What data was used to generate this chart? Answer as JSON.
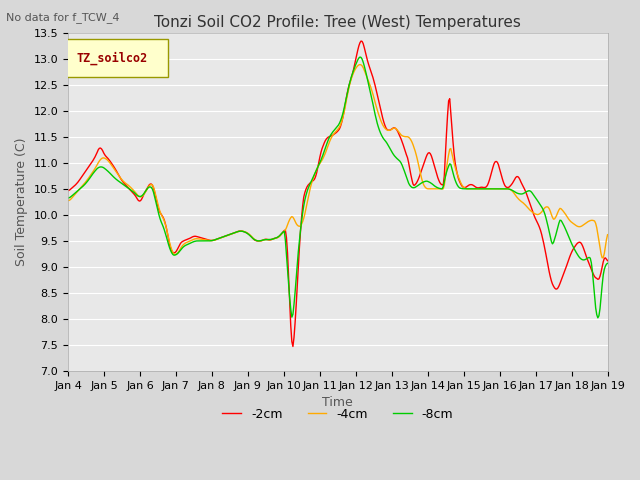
{
  "title": "Tonzi Soil CO2 Profile: Tree (West) Temperatures",
  "subtitle": "No data for f_TCW_4",
  "xlabel": "Time",
  "ylabel": "Soil Temperature (C)",
  "ylim": [
    7.0,
    13.5
  ],
  "yticks": [
    7.0,
    7.5,
    8.0,
    8.5,
    9.0,
    9.5,
    10.0,
    10.5,
    11.0,
    11.5,
    12.0,
    12.5,
    13.0,
    13.5
  ],
  "xtick_labels": [
    "Jan 4",
    "Jan 5",
    "Jan 6",
    "Jan 7",
    "Jan 8",
    "Jan 9",
    "Jan 10",
    "Jan 11",
    "Jan 12",
    "Jan 13",
    "Jan 14",
    "Jan 15",
    "Jan 16",
    "Jan 17",
    "Jan 18",
    "Jan 19"
  ],
  "legend_label": "TZ_soilco2",
  "legend_box_color": "#ffffcc",
  "legend_text_color": "#990000",
  "color_red": "#ff0000",
  "color_orange": "#ffaa00",
  "color_green": "#00cc00",
  "line_labels": [
    "-2cm",
    "-4cm",
    "-8cm"
  ],
  "bg_color": "#e0e0e0",
  "axes_bg_color": "#e8e8e8",
  "grid_color": "#ffffff",
  "title_fontsize": 11,
  "axis_label_fontsize": 9,
  "tick_fontsize": 8,
  "waypoints_red": [
    [
      0.0,
      10.45
    ],
    [
      0.25,
      10.6
    ],
    [
      0.5,
      10.85
    ],
    [
      0.75,
      11.1
    ],
    [
      0.9,
      11.35
    ],
    [
      1.0,
      11.15
    ],
    [
      1.1,
      11.1
    ],
    [
      1.3,
      10.9
    ],
    [
      1.5,
      10.65
    ],
    [
      1.7,
      10.5
    ],
    [
      1.9,
      10.35
    ],
    [
      2.0,
      10.2
    ],
    [
      2.1,
      10.4
    ],
    [
      2.2,
      10.5
    ],
    [
      2.3,
      10.65
    ],
    [
      2.4,
      10.5
    ],
    [
      2.5,
      10.1
    ],
    [
      2.7,
      9.9
    ],
    [
      2.85,
      9.3
    ],
    [
      3.0,
      9.25
    ],
    [
      3.1,
      9.45
    ],
    [
      3.2,
      9.5
    ],
    [
      3.4,
      9.55
    ],
    [
      3.5,
      9.6
    ],
    [
      4.0,
      9.5
    ],
    [
      4.2,
      9.55
    ],
    [
      4.4,
      9.6
    ],
    [
      4.6,
      9.65
    ],
    [
      4.8,
      9.7
    ],
    [
      5.0,
      9.65
    ],
    [
      5.2,
      9.5
    ],
    [
      5.4,
      9.5
    ],
    [
      5.5,
      9.55
    ],
    [
      5.6,
      9.5
    ],
    [
      5.7,
      9.55
    ],
    [
      5.8,
      9.55
    ],
    [
      5.9,
      9.6
    ],
    [
      6.0,
      9.7
    ],
    [
      6.1,
      9.75
    ],
    [
      6.2,
      7.3
    ],
    [
      6.25,
      7.35
    ],
    [
      6.3,
      7.5
    ],
    [
      6.35,
      8.5
    ],
    [
      6.45,
      9.5
    ],
    [
      6.5,
      10.2
    ],
    [
      6.6,
      10.5
    ],
    [
      6.7,
      10.6
    ],
    [
      6.9,
      10.7
    ],
    [
      7.0,
      11.15
    ],
    [
      7.1,
      11.35
    ],
    [
      7.2,
      11.5
    ],
    [
      7.3,
      11.5
    ],
    [
      7.5,
      11.6
    ],
    [
      7.6,
      11.7
    ],
    [
      7.7,
      12.1
    ],
    [
      7.8,
      12.5
    ],
    [
      7.9,
      12.65
    ],
    [
      8.0,
      13.0
    ],
    [
      8.1,
      13.3
    ],
    [
      8.15,
      13.4
    ],
    [
      8.2,
      13.35
    ],
    [
      8.3,
      13.0
    ],
    [
      8.4,
      12.8
    ],
    [
      8.5,
      12.6
    ],
    [
      8.7,
      12.0
    ],
    [
      8.8,
      11.7
    ],
    [
      8.9,
      11.6
    ],
    [
      9.0,
      11.65
    ],
    [
      9.1,
      11.7
    ],
    [
      9.2,
      11.55
    ],
    [
      9.3,
      11.4
    ],
    [
      9.4,
      11.15
    ],
    [
      9.5,
      11.0
    ],
    [
      9.55,
      10.55
    ],
    [
      9.6,
      10.55
    ],
    [
      9.7,
      10.6
    ],
    [
      9.8,
      10.8
    ],
    [
      9.9,
      11.0
    ],
    [
      10.0,
      11.2
    ],
    [
      10.05,
      11.25
    ],
    [
      10.1,
      11.15
    ],
    [
      10.2,
      10.9
    ],
    [
      10.3,
      10.65
    ],
    [
      10.4,
      10.55
    ],
    [
      10.5,
      10.6
    ],
    [
      10.55,
      12.6
    ],
    [
      10.6,
      12.5
    ],
    [
      10.7,
      11.3
    ],
    [
      10.8,
      10.8
    ],
    [
      10.9,
      10.6
    ],
    [
      11.0,
      10.5
    ],
    [
      11.1,
      10.55
    ],
    [
      11.2,
      10.6
    ],
    [
      11.3,
      10.55
    ],
    [
      11.4,
      10.5
    ],
    [
      11.5,
      10.55
    ],
    [
      11.6,
      10.5
    ],
    [
      11.7,
      10.6
    ],
    [
      11.8,
      10.9
    ],
    [
      11.9,
      11.1
    ],
    [
      12.0,
      10.9
    ],
    [
      12.1,
      10.6
    ],
    [
      12.2,
      10.5
    ],
    [
      12.3,
      10.55
    ],
    [
      12.4,
      10.65
    ],
    [
      12.5,
      10.8
    ],
    [
      12.6,
      10.6
    ],
    [
      12.7,
      10.5
    ],
    [
      12.8,
      10.3
    ],
    [
      12.9,
      10.1
    ],
    [
      13.0,
      9.9
    ],
    [
      13.1,
      9.8
    ],
    [
      13.2,
      9.55
    ],
    [
      13.3,
      9.2
    ],
    [
      13.4,
      8.8
    ],
    [
      13.5,
      8.6
    ],
    [
      13.6,
      8.55
    ],
    [
      13.65,
      8.6
    ],
    [
      13.7,
      8.75
    ],
    [
      13.8,
      8.9
    ],
    [
      13.9,
      9.1
    ],
    [
      14.0,
      9.3
    ],
    [
      14.1,
      9.4
    ],
    [
      14.2,
      9.5
    ],
    [
      14.3,
      9.45
    ],
    [
      14.4,
      9.2
    ],
    [
      14.5,
      9.05
    ],
    [
      14.6,
      8.85
    ],
    [
      14.7,
      8.75
    ],
    [
      14.75,
      8.8
    ],
    [
      14.8,
      8.7
    ],
    [
      14.85,
      9.0
    ],
    [
      14.9,
      9.3
    ],
    [
      14.95,
      9.2
    ],
    [
      15.0,
      9.05
    ]
  ],
  "waypoints_orange": [
    [
      0.0,
      10.25
    ],
    [
      0.25,
      10.45
    ],
    [
      0.5,
      10.65
    ],
    [
      0.75,
      10.9
    ],
    [
      0.9,
      11.1
    ],
    [
      1.0,
      11.1
    ],
    [
      1.1,
      11.05
    ],
    [
      1.3,
      10.85
    ],
    [
      1.5,
      10.65
    ],
    [
      1.7,
      10.55
    ],
    [
      1.9,
      10.4
    ],
    [
      2.0,
      10.3
    ],
    [
      2.1,
      10.4
    ],
    [
      2.2,
      10.5
    ],
    [
      2.3,
      10.65
    ],
    [
      2.4,
      10.5
    ],
    [
      2.5,
      10.1
    ],
    [
      2.7,
      9.85
    ],
    [
      2.85,
      9.3
    ],
    [
      3.0,
      9.2
    ],
    [
      3.1,
      9.35
    ],
    [
      3.2,
      9.45
    ],
    [
      3.4,
      9.5
    ],
    [
      3.5,
      9.55
    ],
    [
      4.0,
      9.5
    ],
    [
      4.2,
      9.55
    ],
    [
      4.4,
      9.6
    ],
    [
      4.6,
      9.65
    ],
    [
      4.8,
      9.7
    ],
    [
      5.0,
      9.65
    ],
    [
      5.2,
      9.5
    ],
    [
      5.4,
      9.5
    ],
    [
      5.5,
      9.55
    ],
    [
      5.6,
      9.5
    ],
    [
      5.7,
      9.55
    ],
    [
      5.8,
      9.55
    ],
    [
      5.9,
      9.6
    ],
    [
      6.0,
      9.7
    ],
    [
      6.1,
      9.75
    ],
    [
      6.15,
      10.0
    ],
    [
      6.2,
      10.05
    ],
    [
      6.3,
      9.85
    ],
    [
      6.4,
      9.75
    ],
    [
      6.5,
      9.8
    ],
    [
      6.6,
      10.1
    ],
    [
      6.7,
      10.5
    ],
    [
      6.9,
      10.9
    ],
    [
      7.0,
      11.0
    ],
    [
      7.1,
      11.1
    ],
    [
      7.2,
      11.3
    ],
    [
      7.3,
      11.5
    ],
    [
      7.5,
      11.65
    ],
    [
      7.6,
      11.75
    ],
    [
      7.7,
      12.1
    ],
    [
      7.8,
      12.5
    ],
    [
      7.9,
      12.7
    ],
    [
      8.0,
      12.85
    ],
    [
      8.1,
      12.9
    ],
    [
      8.15,
      12.9
    ],
    [
      8.2,
      12.85
    ],
    [
      8.3,
      12.6
    ],
    [
      8.4,
      12.5
    ],
    [
      8.5,
      12.2
    ],
    [
      8.7,
      11.75
    ],
    [
      8.8,
      11.65
    ],
    [
      8.9,
      11.6
    ],
    [
      9.0,
      11.65
    ],
    [
      9.1,
      11.7
    ],
    [
      9.2,
      11.55
    ],
    [
      9.3,
      11.5
    ],
    [
      9.4,
      11.5
    ],
    [
      9.5,
      11.5
    ],
    [
      9.55,
      11.4
    ],
    [
      9.6,
      11.3
    ],
    [
      9.7,
      11.1
    ],
    [
      9.8,
      10.7
    ],
    [
      9.9,
      10.5
    ],
    [
      10.0,
      10.5
    ],
    [
      10.05,
      10.5
    ],
    [
      10.1,
      10.5
    ],
    [
      10.2,
      10.5
    ],
    [
      10.3,
      10.5
    ],
    [
      10.4,
      10.5
    ],
    [
      10.5,
      10.5
    ],
    [
      10.55,
      11.5
    ],
    [
      10.6,
      11.4
    ],
    [
      10.7,
      11.0
    ],
    [
      10.8,
      10.8
    ],
    [
      10.9,
      10.6
    ],
    [
      11.0,
      10.5
    ],
    [
      11.1,
      10.5
    ],
    [
      11.2,
      10.5
    ],
    [
      11.3,
      10.5
    ],
    [
      11.4,
      10.5
    ],
    [
      11.5,
      10.5
    ],
    [
      11.6,
      10.5
    ],
    [
      11.7,
      10.5
    ],
    [
      11.8,
      10.5
    ],
    [
      11.9,
      10.5
    ],
    [
      12.0,
      10.5
    ],
    [
      12.1,
      10.5
    ],
    [
      12.2,
      10.5
    ],
    [
      12.3,
      10.5
    ],
    [
      12.4,
      10.4
    ],
    [
      12.5,
      10.3
    ],
    [
      12.6,
      10.25
    ],
    [
      12.7,
      10.2
    ],
    [
      12.8,
      10.1
    ],
    [
      12.9,
      10.05
    ],
    [
      13.0,
      10.0
    ],
    [
      13.1,
      10.0
    ],
    [
      13.2,
      10.1
    ],
    [
      13.3,
      10.2
    ],
    [
      13.4,
      10.1
    ],
    [
      13.5,
      9.8
    ],
    [
      13.55,
      9.85
    ],
    [
      13.6,
      10.2
    ],
    [
      13.7,
      10.1
    ],
    [
      13.8,
      10.05
    ],
    [
      13.9,
      9.9
    ],
    [
      14.0,
      9.85
    ],
    [
      14.1,
      9.8
    ],
    [
      14.2,
      9.75
    ],
    [
      14.3,
      9.8
    ],
    [
      14.4,
      9.85
    ],
    [
      14.5,
      9.9
    ],
    [
      14.6,
      9.9
    ],
    [
      14.7,
      9.85
    ],
    [
      14.8,
      9.1
    ],
    [
      14.9,
      9.1
    ],
    [
      15.0,
      9.9
    ]
  ],
  "waypoints_green": [
    [
      0.0,
      10.3
    ],
    [
      0.25,
      10.45
    ],
    [
      0.5,
      10.6
    ],
    [
      0.75,
      10.85
    ],
    [
      0.9,
      10.95
    ],
    [
      1.0,
      10.9
    ],
    [
      1.1,
      10.85
    ],
    [
      1.3,
      10.7
    ],
    [
      1.5,
      10.6
    ],
    [
      1.7,
      10.5
    ],
    [
      1.9,
      10.4
    ],
    [
      2.0,
      10.3
    ],
    [
      2.1,
      10.4
    ],
    [
      2.2,
      10.5
    ],
    [
      2.3,
      10.6
    ],
    [
      2.4,
      10.45
    ],
    [
      2.5,
      10.0
    ],
    [
      2.7,
      9.7
    ],
    [
      2.85,
      9.25
    ],
    [
      3.0,
      9.2
    ],
    [
      3.1,
      9.3
    ],
    [
      3.2,
      9.4
    ],
    [
      3.4,
      9.45
    ],
    [
      3.5,
      9.5
    ],
    [
      4.0,
      9.5
    ],
    [
      4.2,
      9.55
    ],
    [
      4.4,
      9.6
    ],
    [
      4.6,
      9.65
    ],
    [
      4.8,
      9.7
    ],
    [
      5.0,
      9.65
    ],
    [
      5.2,
      9.5
    ],
    [
      5.4,
      9.5
    ],
    [
      5.5,
      9.55
    ],
    [
      5.6,
      9.5
    ],
    [
      5.7,
      9.55
    ],
    [
      5.8,
      9.55
    ],
    [
      5.9,
      9.6
    ],
    [
      6.0,
      9.7
    ],
    [
      6.1,
      9.75
    ],
    [
      6.15,
      7.75
    ],
    [
      6.2,
      7.7
    ],
    [
      6.25,
      7.75
    ],
    [
      6.3,
      8.5
    ],
    [
      6.4,
      9.3
    ],
    [
      6.5,
      10.0
    ],
    [
      6.6,
      10.4
    ],
    [
      6.7,
      10.55
    ],
    [
      6.9,
      10.85
    ],
    [
      7.0,
      11.0
    ],
    [
      7.1,
      11.15
    ],
    [
      7.2,
      11.4
    ],
    [
      7.3,
      11.55
    ],
    [
      7.5,
      11.7
    ],
    [
      7.6,
      11.8
    ],
    [
      7.7,
      12.1
    ],
    [
      7.8,
      12.5
    ],
    [
      7.9,
      12.7
    ],
    [
      8.0,
      12.9
    ],
    [
      8.1,
      13.05
    ],
    [
      8.15,
      13.1
    ],
    [
      8.2,
      13.05
    ],
    [
      8.3,
      12.6
    ],
    [
      8.4,
      12.45
    ],
    [
      8.5,
      12.0
    ],
    [
      8.7,
      11.5
    ],
    [
      8.8,
      11.45
    ],
    [
      8.9,
      11.35
    ],
    [
      9.0,
      11.2
    ],
    [
      9.1,
      11.1
    ],
    [
      9.2,
      11.05
    ],
    [
      9.3,
      11.0
    ],
    [
      9.4,
      10.7
    ],
    [
      9.5,
      10.55
    ],
    [
      9.55,
      10.5
    ],
    [
      9.6,
      10.5
    ],
    [
      9.7,
      10.55
    ],
    [
      9.8,
      10.6
    ],
    [
      9.9,
      10.65
    ],
    [
      10.0,
      10.65
    ],
    [
      10.05,
      10.65
    ],
    [
      10.1,
      10.6
    ],
    [
      10.2,
      10.55
    ],
    [
      10.3,
      10.5
    ],
    [
      10.4,
      10.5
    ],
    [
      10.5,
      10.5
    ],
    [
      10.55,
      11.2
    ],
    [
      10.6,
      11.1
    ],
    [
      10.7,
      10.8
    ],
    [
      10.8,
      10.55
    ],
    [
      10.9,
      10.5
    ],
    [
      11.0,
      10.5
    ],
    [
      11.1,
      10.5
    ],
    [
      11.2,
      10.5
    ],
    [
      11.3,
      10.5
    ],
    [
      11.4,
      10.5
    ],
    [
      11.5,
      10.5
    ],
    [
      11.6,
      10.5
    ],
    [
      11.7,
      10.5
    ],
    [
      11.8,
      10.5
    ],
    [
      11.9,
      10.5
    ],
    [
      12.0,
      10.5
    ],
    [
      12.1,
      10.5
    ],
    [
      12.2,
      10.5
    ],
    [
      12.3,
      10.5
    ],
    [
      12.4,
      10.45
    ],
    [
      12.5,
      10.4
    ],
    [
      12.6,
      10.4
    ],
    [
      12.7,
      10.4
    ],
    [
      12.8,
      10.5
    ],
    [
      12.9,
      10.45
    ],
    [
      13.0,
      10.3
    ],
    [
      13.1,
      10.25
    ],
    [
      13.2,
      10.1
    ],
    [
      13.3,
      10.0
    ],
    [
      13.4,
      9.55
    ],
    [
      13.5,
      9.3
    ],
    [
      13.55,
      9.35
    ],
    [
      13.6,
      10.0
    ],
    [
      13.7,
      9.9
    ],
    [
      13.8,
      9.8
    ],
    [
      13.9,
      9.6
    ],
    [
      14.0,
      9.45
    ],
    [
      14.1,
      9.3
    ],
    [
      14.2,
      9.2
    ],
    [
      14.3,
      9.1
    ],
    [
      14.4,
      9.15
    ],
    [
      14.5,
      9.2
    ],
    [
      14.6,
      9.2
    ],
    [
      14.7,
      7.5
    ],
    [
      14.75,
      7.5
    ],
    [
      14.8,
      8.5
    ],
    [
      14.9,
      9.1
    ],
    [
      15.0,
      9.05
    ]
  ]
}
